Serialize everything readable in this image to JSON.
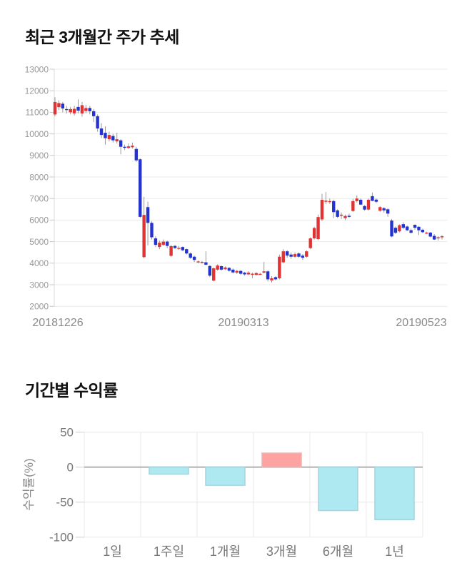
{
  "page": {
    "background": "#ffffff"
  },
  "chart_data": [
    {
      "type": "candlestick",
      "title": "최근 3개월간 주가 추세",
      "xlabel": "",
      "ylabel": "",
      "x_tick_labels": [
        "20181226",
        "20190313",
        "20190523"
      ],
      "y_ticks": [
        13000,
        12000,
        11000,
        10000,
        9000,
        8000,
        7000,
        6000,
        5000,
        4000,
        3000,
        2000
      ],
      "ylim": [
        2000,
        13000
      ],
      "grid": "horizontal",
      "colors": {
        "up_body": "#e03434",
        "down_body": "#2433cf",
        "wick": "#999999",
        "gridline": "#e9e9e9",
        "axis_line": "#d9d9d9",
        "tick_mark": "#c8c8c8",
        "y_tick_text": "#999999",
        "x_tick_text": "#8a8a8a"
      },
      "candles_ohlc": [
        [
          10900,
          11700,
          10820,
          11480
        ],
        [
          11240,
          11560,
          11100,
          11430
        ],
        [
          11400,
          11480,
          11000,
          11180
        ],
        [
          11150,
          11300,
          10950,
          11120
        ],
        [
          11000,
          11250,
          10900,
          11150
        ],
        [
          10950,
          11300,
          10850,
          11160
        ],
        [
          11250,
          11600,
          10950,
          11080
        ],
        [
          10950,
          11480,
          10800,
          11330
        ],
        [
          11060,
          11350,
          10950,
          11200
        ],
        [
          11200,
          11300,
          10900,
          11050
        ],
        [
          11050,
          11150,
          10550,
          10820
        ],
        [
          10820,
          10900,
          10100,
          10250
        ],
        [
          10250,
          10500,
          9800,
          9950
        ],
        [
          10050,
          10350,
          9500,
          9800
        ],
        [
          9750,
          10100,
          9650,
          9950
        ],
        [
          9900,
          10000,
          9600,
          9700
        ],
        [
          9650,
          10050,
          9550,
          9750
        ],
        [
          9700,
          9750,
          9050,
          9400
        ],
        [
          9400,
          9500,
          9250,
          9380
        ],
        [
          9350,
          9550,
          9300,
          9420
        ],
        [
          9380,
          9600,
          9320,
          9450
        ],
        [
          9300,
          9400,
          8700,
          8770
        ],
        [
          8820,
          8870,
          6100,
          6150
        ],
        [
          4280,
          7080,
          4230,
          6240
        ],
        [
          6600,
          6850,
          4820,
          5870
        ],
        [
          5870,
          5950,
          5100,
          5200
        ],
        [
          5150,
          5250,
          4750,
          4850
        ],
        [
          4750,
          5050,
          4650,
          4950
        ],
        [
          4850,
          5100,
          4800,
          5000
        ],
        [
          5000,
          5050,
          4700,
          4800
        ],
        [
          4340,
          4850,
          4300,
          4790
        ],
        [
          4800,
          4850,
          4650,
          4700
        ],
        [
          4700,
          4800,
          4620,
          4710
        ],
        [
          4750,
          4780,
          4550,
          4600
        ],
        [
          4650,
          4680,
          4400,
          4450
        ],
        [
          4450,
          4500,
          4200,
          4250
        ],
        [
          4300,
          4350,
          4050,
          4150
        ],
        [
          4060,
          4120,
          4000,
          4080
        ],
        [
          4040,
          4100,
          3980,
          4060
        ],
        [
          4040,
          4550,
          3900,
          3930
        ],
        [
          3870,
          3900,
          3350,
          3420
        ],
        [
          3190,
          3800,
          3150,
          3760
        ],
        [
          3700,
          3950,
          3650,
          3890
        ],
        [
          3860,
          3900,
          3650,
          3700
        ],
        [
          3720,
          3850,
          3680,
          3800
        ],
        [
          3780,
          3820,
          3600,
          3650
        ],
        [
          3700,
          3750,
          3520,
          3570
        ],
        [
          3560,
          3700,
          3500,
          3640
        ],
        [
          3640,
          3680,
          3450,
          3510
        ],
        [
          3560,
          3600,
          3420,
          3480
        ],
        [
          3480,
          3620,
          3440,
          3560
        ],
        [
          3500,
          3560,
          3300,
          3510
        ],
        [
          3460,
          3580,
          3420,
          3540
        ],
        [
          3500,
          3550,
          3460,
          3505
        ],
        [
          3560,
          4050,
          3520,
          3620
        ],
        [
          3620,
          3660,
          3150,
          3250
        ],
        [
          3200,
          3400,
          3100,
          3300
        ],
        [
          3350,
          3400,
          3200,
          3250
        ],
        [
          3300,
          4400,
          3250,
          4300
        ],
        [
          4040,
          4650,
          4000,
          4550
        ],
        [
          4550,
          4600,
          4250,
          4350
        ],
        [
          4400,
          4500,
          4200,
          4300
        ],
        [
          4300,
          4500,
          4250,
          4420
        ],
        [
          4450,
          4500,
          4250,
          4300
        ],
        [
          4350,
          4420,
          4150,
          4250
        ],
        [
          4300,
          4600,
          4250,
          4550
        ],
        [
          4700,
          5200,
          4650,
          5150
        ],
        [
          5150,
          5700,
          5100,
          5630
        ],
        [
          5120,
          6257,
          5067,
          6140
        ],
        [
          6030,
          7220,
          5950,
          6940
        ],
        [
          6850,
          7300,
          6750,
          6900
        ],
        [
          6880,
          7000,
          6750,
          6880
        ],
        [
          6880,
          6950,
          6090,
          6370
        ],
        [
          6450,
          6500,
          6087,
          6150
        ],
        [
          6200,
          6350,
          6050,
          6250
        ],
        [
          6090,
          6250,
          6000,
          6190
        ],
        [
          6200,
          6300,
          6100,
          6150
        ],
        [
          6420,
          6990,
          6380,
          6880
        ],
        [
          6880,
          7150,
          6820,
          7000
        ],
        [
          6943,
          7000,
          6700,
          6717
        ],
        [
          6650,
          6700,
          6430,
          6487
        ],
        [
          6487,
          7000,
          6440,
          6943
        ],
        [
          7110,
          7277,
          6880,
          6890
        ],
        [
          6950,
          7000,
          6780,
          6850
        ],
        [
          6433,
          6650,
          6380,
          6600
        ],
        [
          6550,
          6600,
          6350,
          6450
        ],
        [
          6500,
          6550,
          6150,
          6300
        ],
        [
          5977,
          6050,
          5200,
          5240
        ],
        [
          5643,
          5700,
          5350,
          5410
        ],
        [
          5477,
          5800,
          5430,
          5760
        ],
        [
          5810,
          5900,
          5580,
          5643
        ],
        [
          5700,
          5750,
          5480,
          5530
        ],
        [
          5530,
          5600,
          5380,
          5410
        ],
        [
          5780,
          5800,
          5550,
          5643
        ],
        [
          5687,
          5720,
          5300,
          5527
        ],
        [
          5550,
          5600,
          5400,
          5437
        ],
        [
          5400,
          5460,
          5330,
          5420
        ],
        [
          5417,
          5450,
          5200,
          5233
        ],
        [
          5267,
          5350,
          5080,
          5097
        ],
        [
          5150,
          5250,
          5050,
          5200
        ],
        [
          5200,
          5300,
          5100,
          5250
        ]
      ]
    },
    {
      "type": "bar",
      "title": "기간별 수익률",
      "ylabel": "수익률(%)",
      "categories": [
        "1일",
        "1주일",
        "1개월",
        "3개월",
        "6개월",
        "1년"
      ],
      "values": [
        0,
        -10,
        -26,
        20,
        -62,
        -75
      ],
      "y_ticks": [
        50,
        0,
        -50,
        -100
      ],
      "ylim": [
        -100,
        50
      ],
      "grid": "both",
      "legend": "none",
      "colors": {
        "positive_fill": "#ffa2a2",
        "positive_stroke": "#e3b6b6",
        "negative_fill": "#aee9f2",
        "negative_stroke": "#a6d3dc",
        "gridline": "#e8e8e8",
        "zero_line": "#b0b0b0",
        "tick_mark": "#cfcfcf",
        "tick_text": "#777777",
        "ylabel_text": "#888888",
        "category_text": "#777777"
      }
    }
  ]
}
